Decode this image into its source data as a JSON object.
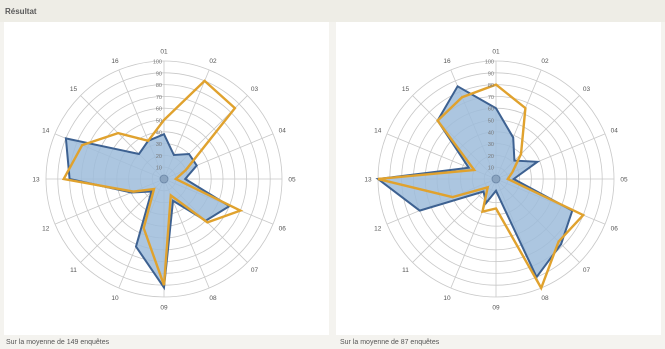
{
  "header": {
    "title": "Résultat"
  },
  "footer": {
    "left_caption": "Sur la moyenne de 149 enquêtes",
    "right_caption": "Sur la moyenne de 87 enquêtes"
  },
  "colors": {
    "fill": "#9dbcda",
    "outline": "#3d6191",
    "reference": "#e0a22e",
    "grid": "#c8c8c8"
  },
  "chart_data": [
    {
      "type": "radar",
      "title": "",
      "categories": [
        "01",
        "02",
        "03",
        "04",
        "05",
        "06",
        "07",
        "08",
        "09",
        "10",
        "11",
        "12",
        "13",
        "14",
        "15",
        "16"
      ],
      "ticks": [
        "0",
        "10",
        "20",
        "30",
        "40",
        "50",
        "60",
        "70",
        "80",
        "90",
        "100"
      ],
      "range": [
        0,
        100
      ],
      "series": [
        {
          "values": [
            38,
            22,
            30,
            30,
            18,
            60,
            50,
            20,
            92,
            62,
            15,
            30,
            80,
            90,
            30,
            35
          ]
        },
        {
          "values": [
            50,
            90,
            85,
            20,
            10,
            70,
            52,
            15,
            90,
            45,
            12,
            28,
            85,
            75,
            55,
            35
          ]
        }
      ]
    },
    {
      "type": "radar",
      "title": "",
      "categories": [
        "01",
        "02",
        "03",
        "04",
        "05",
        "06",
        "07",
        "08",
        "09",
        "10",
        "11",
        "12",
        "13",
        "14",
        "15",
        "16"
      ],
      "ticks": [
        "0",
        "10",
        "20",
        "30",
        "40",
        "50",
        "60",
        "70",
        "80",
        "90",
        "100"
      ],
      "range": [
        0,
        100
      ],
      "series": [
        {
          "values": [
            60,
            38,
            22,
            38,
            15,
            70,
            78,
            90,
            10,
            22,
            15,
            70,
            100,
            25,
            70,
            85
          ]
        },
        {
          "values": [
            80,
            65,
            30,
            15,
            10,
            80,
            75,
            100,
            25,
            30,
            10,
            40,
            100,
            20,
            70,
            75
          ]
        }
      ]
    }
  ]
}
